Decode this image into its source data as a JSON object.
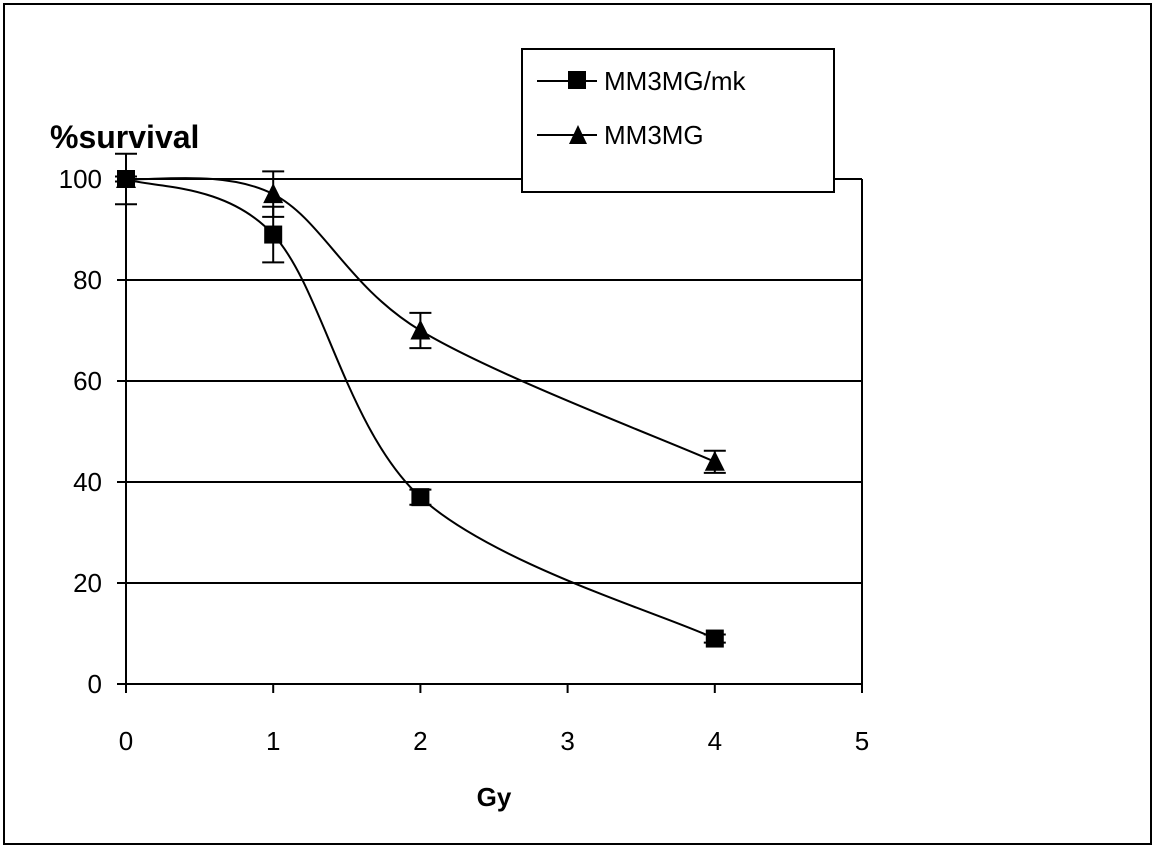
{
  "chart_data": {
    "type": "line",
    "xlabel": "Gy",
    "ylabel": "%survival",
    "xlim": [
      0,
      5
    ],
    "ylim": [
      0,
      100
    ],
    "xticks": [
      0,
      1,
      2,
      3,
      4,
      5
    ],
    "yticks": [
      0,
      20,
      40,
      60,
      80,
      100
    ],
    "grid": "horizontal",
    "legend_position": "top-right",
    "smooth": true,
    "series": [
      {
        "name": "MM3MG/mk",
        "marker": "square",
        "color": "#000000",
        "x": [
          0,
          1,
          2,
          4
        ],
        "y": [
          100,
          89,
          37,
          9
        ],
        "error": [
          5,
          5.5,
          1.5,
          0.8
        ]
      },
      {
        "name": "MM3MG",
        "marker": "triangle",
        "color": "#000000",
        "x": [
          0,
          1,
          2,
          4
        ],
        "y": [
          100,
          97,
          70,
          44
        ],
        "error": [
          0.5,
          4.5,
          3.5,
          2.2
        ]
      }
    ]
  }
}
